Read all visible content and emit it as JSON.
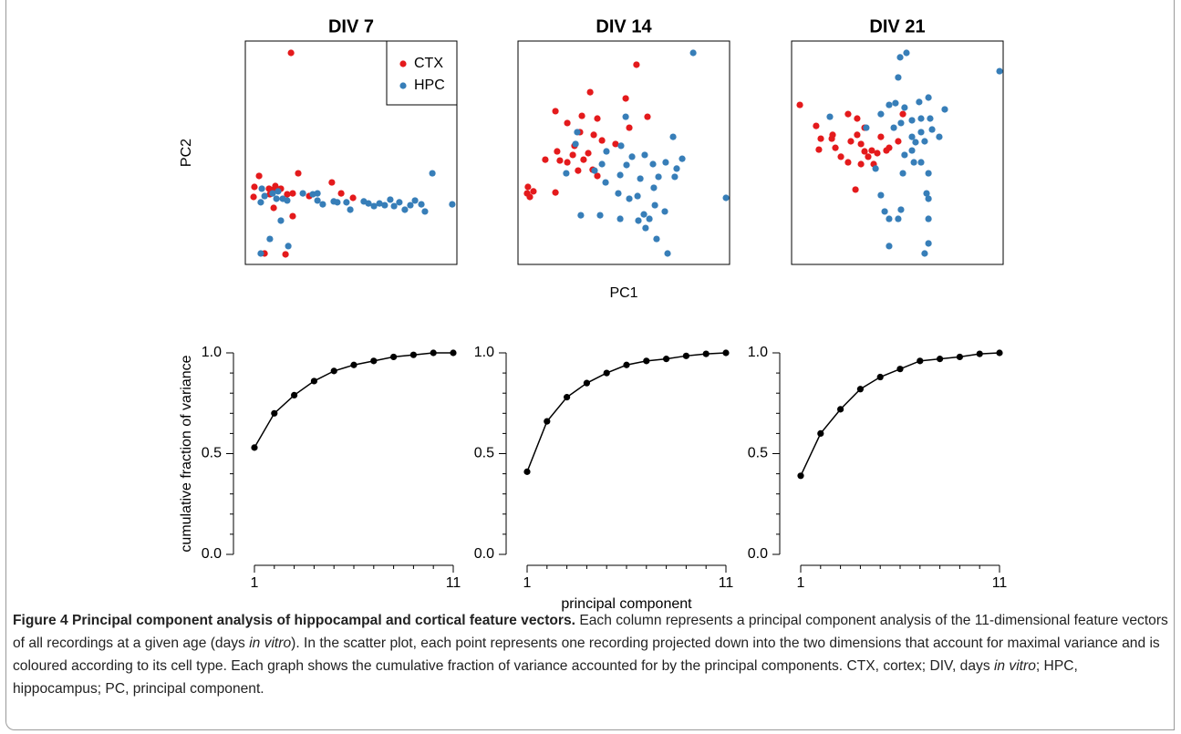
{
  "chart_data": [
    {
      "type": "scatter",
      "title": "DIV 7",
      "ylabel": "PC2",
      "legend": "upper right",
      "xlim": [
        0,
        100
      ],
      "ylim": [
        0,
        100
      ],
      "series": [
        {
          "name": "CTX",
          "color": "#e41a1c",
          "x": [
            21.6,
            4.3,
            6.5,
            11.2,
            11.6,
            13.4,
            16.8,
            19.8,
            22.4,
            25.0,
            30.2,
            40.9,
            45.3,
            50.9,
            3.9,
            13.4,
            22.4,
            9.1,
            19.0,
            14.2
          ],
          "values": [
            94.7,
            34.7,
            39.6,
            33.9,
            31.4,
            33.5,
            33.9,
            31.4,
            31.8,
            40.8,
            30.6,
            36.7,
            31.8,
            29.8,
            30.2,
            25.3,
            21.6,
            4.9,
            4.5,
            35.1
          ]
        },
        {
          "name": "HPC",
          "color": "#377eb8",
          "x": [
            7.8,
            9.1,
            7.3,
            12.9,
            14.7,
            17.7,
            15.5,
            19.8,
            16.8,
            11.6,
            20.3,
            7.3,
            27.2,
            31.9,
            34.1,
            36.6,
            34.1,
            41.8,
            43.5,
            47.8,
            49.6,
            56.0,
            58.2,
            60.8,
            63.4,
            65.9,
            68.5,
            70.3,
            72.8,
            75.4,
            78.0,
            80.2,
            83.2,
            84.9,
            88.4,
            97.8
          ],
          "values": [
            33.9,
            30.6,
            27.8,
            31.8,
            29.4,
            29.4,
            32.7,
            28.6,
            19.6,
            11.4,
            8.2,
            4.9,
            31.8,
            31.4,
            28.6,
            26.9,
            31.8,
            28.2,
            27.8,
            27.8,
            24.5,
            28.2,
            27.3,
            26.1,
            27.3,
            26.5,
            29.0,
            26.1,
            27.8,
            24.5,
            26.5,
            28.6,
            26.9,
            23.7,
            40.8,
            26.9
          ]
        }
      ]
    },
    {
      "type": "scatter",
      "title": "DIV 14",
      "xlabel": "PC1",
      "xlim": [
        0,
        100
      ],
      "ylim": [
        0,
        100
      ],
      "series": [
        {
          "color": "#e41a1c",
          "x": [
            56.0,
            34.1,
            50.9,
            17.7,
            30.2,
            37.5,
            23.3,
            29.3,
            35.8,
            39.7,
            26.7,
            18.5,
            12.9,
            19.8,
            23.3,
            25.9,
            31.0,
            33.2,
            35.3,
            52.6,
            61.2,
            46.1,
            4.7,
            4.3,
            5.6,
            7.3,
            17.7,
            28.4,
            37.5
          ],
          "values": [
            89.4,
            77.1,
            74.3,
            68.6,
            66.5,
            65.3,
            63.3,
            59.2,
            58.0,
            55.5,
            53.1,
            50.6,
            46.9,
            46.5,
            45.7,
            49.0,
            46.9,
            49.8,
            42.4,
            61.2,
            66.1,
            53.9,
            34.7,
            31.8,
            30.2,
            32.7,
            32.2,
            42.0,
            39.6
          ]
        },
        {
          "color": "#377eb8",
          "x": [
            82.8,
            50.9,
            28.0,
            27.2,
            41.8,
            48.7,
            53.9,
            51.3,
            59.9,
            63.8,
            69.8,
            73.3,
            75.0,
            77.6,
            74.1,
            66.4,
            57.8,
            48.3,
            39.7,
            36.2,
            41.4,
            47.4,
            52.6,
            56.5,
            64.2,
            59.5,
            62.1,
            60.3,
            65.5,
            69.4,
            64.7,
            56.9,
            48.3,
            29.7,
            38.8,
            98.3,
            70.7,
            22.8
          ],
          "values": [
            94.7,
            66.1,
            59.2,
            53.9,
            50.6,
            53.1,
            48.2,
            44.5,
            49.0,
            44.9,
            45.7,
            57.1,
            42.9,
            47.3,
            39.2,
            39.2,
            38.4,
            40.0,
            44.9,
            42.0,
            36.7,
            31.8,
            29.4,
            30.6,
            34.3,
            22.4,
            20.4,
            16.3,
            11.4,
            23.7,
            26.5,
            19.6,
            20.4,
            22.0,
            22.0,
            29.8,
            4.9,
            40.8
          ]
        }
      ]
    },
    {
      "type": "scatter",
      "title": "DIV 21",
      "xlim": [
        0,
        100
      ],
      "ylim": [
        0,
        100
      ],
      "series": [
        {
          "color": "#e41a1c",
          "x": [
            3.9,
            11.6,
            13.8,
            12.9,
            19.0,
            19.4,
            20.7,
            23.3,
            26.7,
            28.0,
            31.0,
            32.8,
            34.5,
            36.2,
            37.9,
            40.5,
            42.2,
            44.8,
            46.1,
            50.4,
            26.7,
            31.0,
            34.5,
            32.8,
            30.2,
            38.8,
            52.6
          ],
          "values": [
            71.4,
            62.0,
            56.3,
            51.4,
            56.3,
            58.0,
            52.2,
            48.2,
            45.7,
            55.1,
            58.0,
            53.9,
            50.6,
            48.2,
            51.0,
            49.8,
            57.1,
            51.0,
            52.2,
            55.1,
            67.3,
            65.3,
            61.2,
            44.9,
            33.5,
            44.9,
            67.3
          ]
        },
        {
          "color": "#377eb8",
          "x": [
            54.3,
            51.3,
            98.3,
            50.4,
            49.1,
            53.4,
            60.3,
            64.7,
            72.4,
            65.5,
            61.2,
            56.9,
            51.7,
            48.3,
            56.9,
            61.2,
            66.4,
            62.9,
            58.6,
            56.9,
            53.4,
            57.8,
            52.6,
            61.2,
            64.7,
            63.8,
            64.7,
            42.2,
            35.3,
            18.1,
            46.1,
            39.7,
            42.2,
            44.0,
            46.1,
            51.7,
            50.4,
            64.7,
            64.7,
            62.9,
            46.1,
            69.8
          ],
          "values": [
            94.7,
            92.7,
            86.5,
            83.7,
            72.2,
            70.2,
            72.7,
            74.7,
            69.4,
            65.3,
            65.3,
            64.5,
            63.3,
            61.2,
            57.1,
            59.2,
            60.4,
            55.1,
            54.7,
            51.0,
            49.0,
            45.7,
            40.8,
            45.7,
            40.8,
            31.8,
            29.4,
            67.3,
            61.2,
            66.1,
            71.4,
            42.9,
            31.0,
            23.7,
            20.4,
            24.5,
            20.4,
            20.4,
            9.4,
            4.9,
            8.2,
            57.1
          ]
        }
      ]
    },
    {
      "type": "line",
      "ylabel": "cumulative fraction of variance",
      "xlim": [
        1,
        11
      ],
      "ylim": [
        0,
        1
      ],
      "xticks": [
        1,
        11
      ],
      "xminorticks": [
        2,
        3,
        4,
        5,
        6,
        7,
        8,
        9,
        10
      ],
      "yticks": [
        {
          "value": 0,
          "label": "0.0"
        },
        0.5,
        {
          "value": 1,
          "label": "1.0"
        }
      ],
      "yminorticks": [
        0.1,
        0.2,
        0.3,
        0.4,
        0.6,
        0.7,
        0.8,
        0.9
      ],
      "x": [
        1,
        2,
        3,
        4,
        5,
        6,
        7,
        8,
        9,
        10,
        11
      ],
      "series": [
        {
          "color": "#000000",
          "values": [
            0.53,
            0.7,
            0.79,
            0.86,
            0.91,
            0.94,
            0.96,
            0.98,
            0.99,
            1.0,
            1.0
          ]
        }
      ]
    },
    {
      "type": "line",
      "xlabel": "principal component",
      "xlim": [
        1,
        11
      ],
      "ylim": [
        0,
        1
      ],
      "xticks": [
        1,
        11
      ],
      "xminorticks": [
        2,
        3,
        4,
        5,
        6,
        7,
        8,
        9,
        10
      ],
      "yticks": [
        {
          "value": 0,
          "label": "0.0"
        },
        0.5,
        {
          "value": 1,
          "label": "1.0"
        }
      ],
      "yminorticks": [
        0.1,
        0.2,
        0.3,
        0.4,
        0.6,
        0.7,
        0.8,
        0.9
      ],
      "x": [
        1,
        2,
        3,
        4,
        5,
        6,
        7,
        8,
        9,
        10,
        11
      ],
      "series": [
        {
          "color": "#000000",
          "values": [
            0.41,
            0.66,
            0.78,
            0.85,
            0.9,
            0.94,
            0.96,
            0.97,
            0.985,
            0.995,
            1.0
          ]
        }
      ]
    },
    {
      "type": "line",
      "xlim": [
        1,
        11
      ],
      "ylim": [
        0,
        1
      ],
      "xticks": [
        1,
        11
      ],
      "xminorticks": [
        2,
        3,
        4,
        5,
        6,
        7,
        8,
        9,
        10
      ],
      "yticks": [
        {
          "value": 0,
          "label": "0.0"
        },
        0.5,
        {
          "value": 1,
          "label": "1.0"
        }
      ],
      "yminorticks": [
        0.1,
        0.2,
        0.3,
        0.4,
        0.6,
        0.7,
        0.8,
        0.9
      ],
      "x": [
        1,
        2,
        3,
        4,
        5,
        6,
        7,
        8,
        9,
        10,
        11
      ],
      "series": [
        {
          "color": "#000000",
          "values": [
            0.39,
            0.6,
            0.72,
            0.82,
            0.88,
            0.92,
            0.96,
            0.97,
            0.98,
            0.995,
            1.0
          ]
        }
      ]
    }
  ],
  "caption": {
    "label": "Figure 4",
    "title": "Principal component analysis of hippocampal and cortical feature vectors.",
    "body": [
      "Each column represents a principal component analysis of the 11-dimensional feature vectors of all recordings at a given age (days ",
      "in vitro",
      "). In the scatter plot, each point represents one recording projected down into the two dimensions that account for maximal variance and is coloured according to its cell type. Each graph shows the cumulative fraction of variance accounted for by the principal components. CTX, cortex; DIV, days ",
      "in vitro",
      "; HPC, hippocampus; PC, principal component."
    ]
  }
}
